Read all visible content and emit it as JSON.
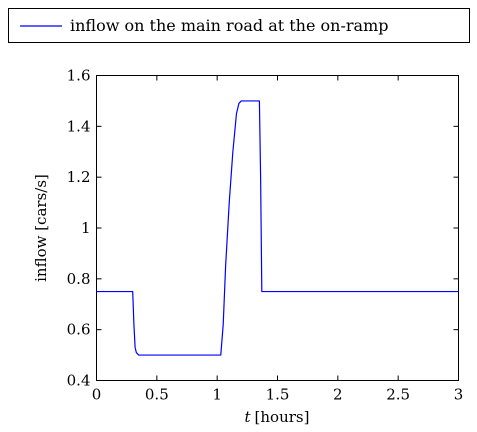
{
  "chart_data": {
    "type": "line",
    "title": "",
    "xlabel_var": "t",
    "xlabel_unit": "[hours]",
    "ylabel": "inflow [cars/s]",
    "xlim": [
      0,
      3
    ],
    "ylim": [
      0.4,
      1.6
    ],
    "grid": false,
    "legend_position": "top",
    "x_ticks": [
      {
        "value": 0,
        "label": "0"
      },
      {
        "value": 0.5,
        "label": "0.5"
      },
      {
        "value": 1,
        "label": "1"
      },
      {
        "value": 1.5,
        "label": "1.5"
      },
      {
        "value": 2,
        "label": "2"
      },
      {
        "value": 2.5,
        "label": "2.5"
      },
      {
        "value": 3,
        "label": "3"
      }
    ],
    "y_ticks": [
      {
        "value": 0.4,
        "label": "0.4"
      },
      {
        "value": 0.6,
        "label": "0.6"
      },
      {
        "value": 0.8,
        "label": "0.8"
      },
      {
        "value": 1,
        "label": "1"
      },
      {
        "value": 1.2,
        "label": "1.2"
      },
      {
        "value": 1.4,
        "label": "1.4"
      },
      {
        "value": 1.6,
        "label": "1.6"
      }
    ],
    "series": [
      {
        "name": "inflow on the main road at the on-ramp",
        "color": "#0000ff",
        "x": [
          0,
          0.3,
          0.31,
          0.32,
          0.33,
          0.35,
          1.03,
          1.05,
          1.07,
          1.1,
          1.13,
          1.16,
          1.18,
          1.2,
          1.22,
          1.35,
          1.36,
          1.37,
          3.0
        ],
        "y": [
          0.75,
          0.75,
          0.62,
          0.53,
          0.51,
          0.5,
          0.5,
          0.62,
          0.85,
          1.1,
          1.3,
          1.45,
          1.49,
          1.5,
          1.5,
          1.5,
          1.2,
          0.75,
          0.75
        ]
      }
    ]
  }
}
